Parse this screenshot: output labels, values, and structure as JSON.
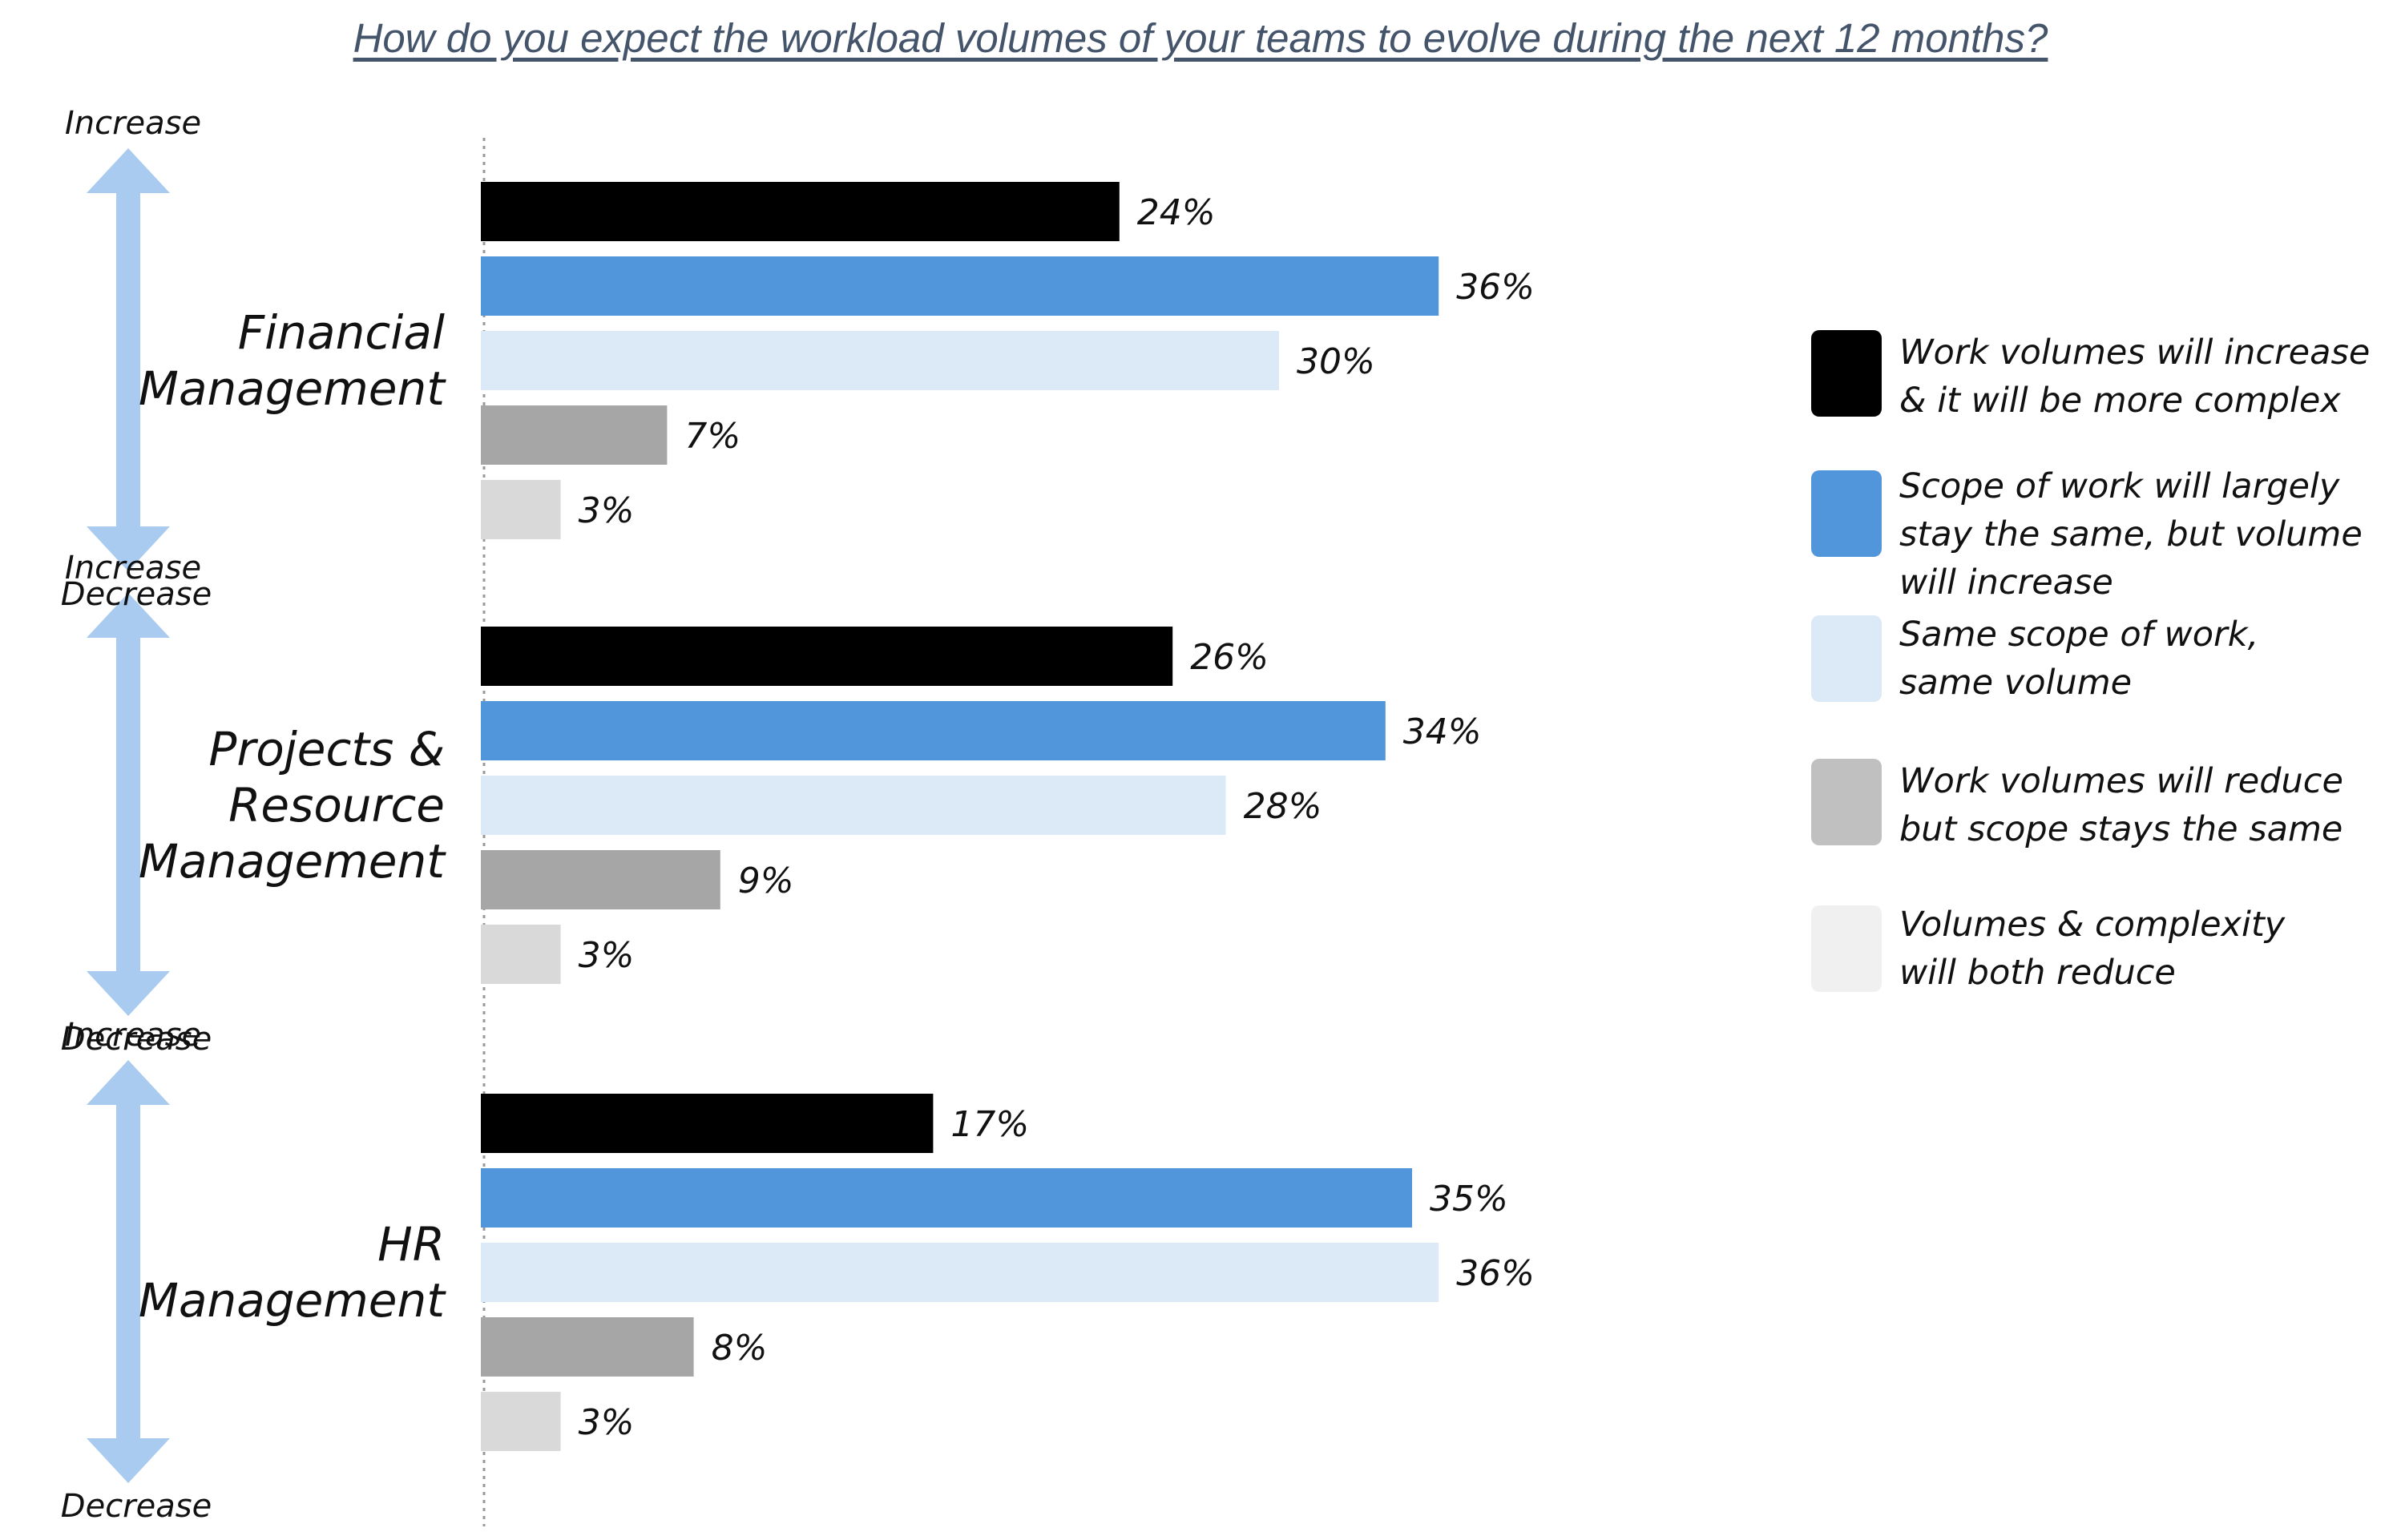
{
  "chart_data": {
    "type": "bar",
    "orientation": "horizontal",
    "title": "How do you expect the workload volumes of your teams to evolve during the next 12 months?",
    "xlabel": "",
    "ylabel": "",
    "xlim": [
      0,
      40
    ],
    "grid": false,
    "legend_position": "right",
    "scale_labels": {
      "top": "Increase",
      "bottom": "Decrease"
    },
    "groups": [
      {
        "label": "Financial\nManagement"
      },
      {
        "label": "Projects &\nResource\nManagement"
      },
      {
        "label": "HR\nManagement"
      }
    ],
    "series": [
      {
        "name": "Work volumes will increase\n& it will be more complex",
        "color": "#000000",
        "values": [
          24,
          26,
          17
        ],
        "labels": [
          "24%",
          "26%",
          "17%"
        ]
      },
      {
        "name": "Scope of work will largely\nstay the same, but volume\nwill increase",
        "color": "#5195da",
        "values": [
          36,
          34,
          35
        ],
        "labels": [
          "36%",
          "34%",
          "35%"
        ]
      },
      {
        "name": "Same scope of work,\nsame volume",
        "color": "#dce9f7",
        "values": [
          30,
          28,
          36
        ],
        "labels": [
          "30%",
          "28%",
          "36%"
        ]
      },
      {
        "name": "Work volumes will reduce\nbut scope stays the same",
        "color": "#a6a6a6",
        "values": [
          7,
          9,
          8
        ],
        "labels": [
          "7%",
          "9%",
          "8%"
        ]
      },
      {
        "name": "Volumes & complexity\nwill both reduce",
        "color": "#d9d9d9",
        "values": [
          3,
          3,
          3
        ],
        "labels": [
          "3%",
          "3%",
          "3%"
        ]
      }
    ],
    "legend_colors": [
      "#000000",
      "#5195da",
      "#dce9f7",
      "#c0c0c0",
      "#f0f0f0"
    ]
  }
}
